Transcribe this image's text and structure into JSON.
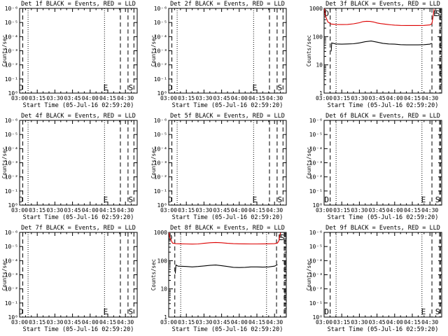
{
  "common": {
    "xlabel": "Start Time (05-Jul-16 02:59:20)",
    "ylabel": "Counts/sec",
    "xticks": [
      "03:00",
      "03:15",
      "03:30",
      "03:45",
      "04:00",
      "04:15",
      "04:30"
    ],
    "xtick_minutes": [
      0,
      15,
      30,
      45,
      60,
      75,
      90
    ],
    "xlim_minutes": [
      0,
      100
    ],
    "yticks_pow": [
      "10⁰",
      "10⁻¹",
      "10⁻²",
      "10⁻³",
      "10⁻⁴",
      "10⁻⁵",
      "10⁻⁶"
    ],
    "yticks_lin": [
      "1",
      "10",
      "100",
      "1000"
    ],
    "marker_labels": [
      "D",
      "E",
      "S"
    ],
    "colors": {
      "events": "#000000",
      "lld": "#dd0000"
    }
  },
  "chart_data": [
    {
      "type": "line",
      "title": "Det 1f BLACK = Events, RED = LLD",
      "yscale": "log",
      "ylim": [
        1e-06,
        1
      ],
      "series": [],
      "dashed_lines": [
        2.7,
        85.7,
        92.2,
        97.2
      ],
      "dotted_lines": [
        7.2,
        72.2
      ],
      "markers": [
        {
          "label": "D",
          "x": 1.2
        },
        {
          "label": "E",
          "x": 73.2
        },
        {
          "label": "S",
          "x": 94.5
        }
      ]
    },
    {
      "type": "line",
      "title": "Det 2f BLACK = Events, RED = LLD",
      "yscale": "log",
      "ylim": [
        1e-06,
        1
      ],
      "series": [],
      "dashed_lines": [
        2.7,
        85.7,
        92.2,
        97.2
      ],
      "dotted_lines": [
        7.2,
        72.2
      ],
      "markers": [
        {
          "label": "D",
          "x": 1.2
        },
        {
          "label": "E",
          "x": 73.2
        },
        {
          "label": "S",
          "x": 94.5
        }
      ]
    },
    {
      "type": "line",
      "title": "Det 3f BLACK = Events, RED = LLD",
      "yscale": "log",
      "ylim": [
        1,
        1000
      ],
      "series": [
        {
          "name": "LLD",
          "color": "red",
          "x": [
            0.3,
            1.0,
            3.2,
            6,
            10,
            15,
            20,
            25,
            30,
            33,
            36,
            39,
            42,
            45,
            48,
            51,
            54,
            57,
            60,
            65,
            70,
            75,
            80,
            85,
            90,
            91.7,
            92.7,
            93.5
          ],
          "y": [
            980,
            560,
            330,
            280,
            270,
            268,
            270,
            285,
            310,
            340,
            350,
            345,
            330,
            305,
            290,
            280,
            270,
            262,
            256,
            250,
            248,
            248,
            248,
            250,
            260,
            290,
            520,
            950
          ]
        },
        {
          "name": "Events",
          "color": "black",
          "x": [
            6,
            6.5,
            10,
            15,
            20,
            25,
            30,
            35,
            40,
            45,
            50,
            55,
            60,
            65,
            70,
            75,
            80,
            85,
            90,
            91.5
          ],
          "y": [
            30,
            60,
            55,
            54,
            55,
            56,
            60,
            66,
            70,
            64,
            58,
            55,
            54,
            52,
            51,
            51,
            51,
            52,
            54,
            58
          ]
        }
      ],
      "dashed_lines": [
        5.2,
        91.7,
        98.2,
        99.0
      ],
      "dotted_lines": [
        10.2,
        83.2
      ],
      "markers": [
        {
          "label": "D",
          "x": 2.2
        },
        {
          "label": "E",
          "x": 95.0
        },
        {
          "label": "S",
          "x": 96.5
        }
      ]
    },
    {
      "type": "line",
      "title": "Det 4f BLACK = Events, RED = LLD",
      "yscale": "log",
      "ylim": [
        1e-06,
        1
      ],
      "series": [],
      "dashed_lines": [
        2.7,
        85.7,
        92.2,
        97.2
      ],
      "dotted_lines": [
        7.2,
        72.2
      ],
      "markers": [
        {
          "label": "D",
          "x": 1.2
        },
        {
          "label": "E",
          "x": 73.2
        },
        {
          "label": "S",
          "x": 94.5
        }
      ]
    },
    {
      "type": "line",
      "title": "Det 5f BLACK = Events, RED = LLD",
      "yscale": "log",
      "ylim": [
        1e-06,
        1
      ],
      "series": [],
      "dashed_lines": [
        2.7,
        85.7,
        92.2,
        97.2
      ],
      "dotted_lines": [
        7.2,
        72.2
      ],
      "markers": [
        {
          "label": "D",
          "x": 1.2
        },
        {
          "label": "E",
          "x": 73.2
        },
        {
          "label": "S",
          "x": 94.5
        }
      ]
    },
    {
      "type": "line",
      "title": "Det 6f BLACK = Events, RED = LLD",
      "yscale": "log",
      "ylim": [
        1e-06,
        1
      ],
      "series": [],
      "dashed_lines": [
        5.2,
        91.7,
        98.2,
        99.0
      ],
      "dotted_lines": [
        10.2,
        83.2
      ],
      "markers": [
        {
          "label": "D",
          "x": 2.2
        },
        {
          "label": "E",
          "x": 84.5
        },
        {
          "label": "S",
          "x": 96.5
        }
      ]
    },
    {
      "type": "line",
      "title": "Det 7f BLACK = Events, RED = LLD",
      "yscale": "log",
      "ylim": [
        1e-06,
        1
      ],
      "series": [],
      "dashed_lines": [
        2.7,
        85.7,
        92.2,
        97.2
      ],
      "dotted_lines": [
        7.2,
        72.2
      ],
      "markers": [
        {
          "label": "D",
          "x": 1.2
        },
        {
          "label": "E",
          "x": 73.2
        },
        {
          "label": "S",
          "x": 94.5
        }
      ]
    },
    {
      "type": "line",
      "title": "Det 8f BLACK = Events, RED = LLD",
      "yscale": "log",
      "ylim": [
        1,
        1000
      ],
      "series": [
        {
          "name": "LLD",
          "color": "red",
          "x": [
            0.3,
            1.0,
            3.2,
            6,
            10,
            15,
            20,
            25,
            30,
            35,
            40,
            45,
            50,
            55,
            60,
            65,
            70,
            75,
            80,
            85,
            90,
            92.5,
            93.8,
            94.5,
            95.2
          ],
          "y": [
            980,
            650,
            420,
            400,
            395,
            390,
            385,
            390,
            410,
            430,
            440,
            430,
            410,
            400,
            395,
            392,
            390,
            390,
            392,
            395,
            400,
            420,
            520,
            800,
            980
          ]
        },
        {
          "name": "Events",
          "color": "black",
          "x": [
            5.6,
            6.2,
            8,
            15,
            20,
            25,
            30,
            35,
            40,
            45,
            50,
            55,
            60,
            65,
            70,
            75,
            80,
            85,
            90,
            92.5
          ],
          "y": [
            35,
            70,
            64,
            62,
            60,
            62,
            65,
            68,
            70,
            66,
            62,
            58,
            57,
            58,
            60,
            60,
            59,
            60,
            64,
            72
          ]
        }
      ],
      "dashed_lines": [
        5.2,
        91.7,
        98.2,
        99.0
      ],
      "dotted_lines": [
        10.2,
        83.2
      ],
      "markers": [
        {
          "label": "D",
          "x": 1.2
        },
        {
          "label": "E",
          "x": 95.0
        },
        {
          "label": "S",
          "x": 96.5
        }
      ]
    },
    {
      "type": "line",
      "title": "Det 9f BLACK = Events, RED = LLD",
      "yscale": "log",
      "ylim": [
        1e-06,
        1
      ],
      "series": [],
      "dashed_lines": [
        5.2,
        91.7,
        98.2,
        99.0
      ],
      "dotted_lines": [
        10.2,
        83.2
      ],
      "markers": [
        {
          "label": "D",
          "x": 2.2
        },
        {
          "label": "E",
          "x": 84.5
        },
        {
          "label": "S",
          "x": 96.5
        }
      ]
    }
  ]
}
